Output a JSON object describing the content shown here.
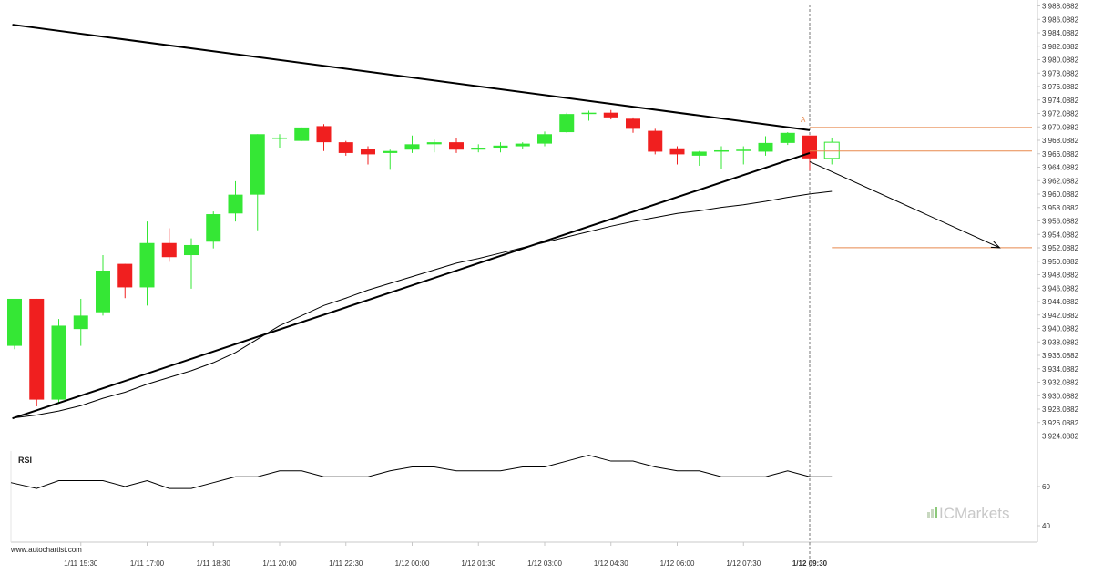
{
  "chart_data": {
    "type": "candlestick",
    "source_label": "www.autochartist.com",
    "brand_label": "ICMarkets",
    "y_axis": {
      "min": 3924.0882,
      "max": 3988.0882,
      "ticks": [
        3988.0882,
        3986.0882,
        3984.0882,
        3982.0882,
        3980.0882,
        3978.0882,
        3976.0882,
        3974.0882,
        3972.0882,
        3970.0882,
        3968.0882,
        3966.0882,
        3964.0882,
        3962.0882,
        3960.0882,
        3958.0882,
        3956.0882,
        3954.0882,
        3952.0882,
        3950.0882,
        3948.0882,
        3946.0882,
        3944.0882,
        3942.0882,
        3940.0882,
        3938.0882,
        3936.0882,
        3934.0882,
        3932.0882,
        3930.0882,
        3928.0882,
        3926.0882,
        3924.0882
      ],
      "tick_labels": [
        "3,988.0882",
        "3,986.0882",
        "3,984.0882",
        "3,982.0882",
        "3,980.0882",
        "3,978.0882",
        "3,976.0882",
        "3,974.0882",
        "3,972.0882",
        "3,970.0882",
        "3,968.0882",
        "3,966.0882",
        "3,964.0882",
        "3,962.0882",
        "3,960.0882",
        "3,958.0882",
        "3,956.0882",
        "3,954.0882",
        "3,952.0882",
        "3,950.0882",
        "3,948.0882",
        "3,946.0882",
        "3,944.0882",
        "3,942.0882",
        "3,940.0882",
        "3,938.0882",
        "3,936.0882",
        "3,934.0882",
        "3,932.0882",
        "3,930.0882",
        "3,928.0882",
        "3,926.0882",
        "3,924.0882"
      ]
    },
    "x_axis": {
      "labels": [
        {
          "index": 3,
          "text": "1/11 15:30"
        },
        {
          "index": 6,
          "text": "1/11 17:00"
        },
        {
          "index": 9,
          "text": "1/11 18:30"
        },
        {
          "index": 12,
          "text": "1/11 20:00"
        },
        {
          "index": 15,
          "text": "1/11 22:30"
        },
        {
          "index": 18,
          "text": "1/12 00:00"
        },
        {
          "index": 21,
          "text": "1/12 01:30"
        },
        {
          "index": 24,
          "text": "1/12 03:00"
        },
        {
          "index": 27,
          "text": "1/12 04:30"
        },
        {
          "index": 30,
          "text": "1/12 06:00"
        },
        {
          "index": 33,
          "text": "1/12 07:30"
        },
        {
          "index": 36,
          "text": "1/12 09:30",
          "bold": true
        }
      ]
    },
    "candles": [
      {
        "o": 3937.5,
        "h": 3944.5,
        "l": 3937.0,
        "c": 3944.5
      },
      {
        "o": 3944.5,
        "h": 3944.5,
        "l": 3928.5,
        "c": 3929.5
      },
      {
        "o": 3929.5,
        "h": 3941.5,
        "l": 3929.0,
        "c": 3940.5
      },
      {
        "o": 3940.0,
        "h": 3944.5,
        "l": 3937.5,
        "c": 3942.0
      },
      {
        "o": 3942.5,
        "h": 3951.0,
        "l": 3942.0,
        "c": 3948.7
      },
      {
        "o": 3949.7,
        "h": 3949.7,
        "l": 3944.6,
        "c": 3946.2
      },
      {
        "o": 3946.2,
        "h": 3956.0,
        "l": 3943.5,
        "c": 3952.8
      },
      {
        "o": 3952.8,
        "h": 3955.0,
        "l": 3950.0,
        "c": 3950.7
      },
      {
        "o": 3951.0,
        "h": 3953.5,
        "l": 3946.0,
        "c": 3952.5
      },
      {
        "o": 3953.0,
        "h": 3957.5,
        "l": 3952.0,
        "c": 3957.1
      },
      {
        "o": 3957.2,
        "h": 3962.0,
        "l": 3956.0,
        "c": 3960.0
      },
      {
        "o": 3960.0,
        "h": 3969.0,
        "l": 3954.7,
        "c": 3969.0
      },
      {
        "o": 3968.5,
        "h": 3969.0,
        "l": 3967.0,
        "c": 3968.5
      },
      {
        "o": 3968.0,
        "h": 3970.0,
        "l": 3968.0,
        "c": 3970.0
      },
      {
        "o": 3970.2,
        "h": 3970.5,
        "l": 3966.5,
        "c": 3967.8
      },
      {
        "o": 3967.8,
        "h": 3968.0,
        "l": 3965.8,
        "c": 3966.2
      },
      {
        "o": 3966.8,
        "h": 3967.2,
        "l": 3964.5,
        "c": 3966.0
      },
      {
        "o": 3966.2,
        "h": 3966.7,
        "l": 3963.7,
        "c": 3966.5
      },
      {
        "o": 3966.7,
        "h": 3968.8,
        "l": 3966.2,
        "c": 3967.5
      },
      {
        "o": 3967.5,
        "h": 3968.2,
        "l": 3966.3,
        "c": 3967.8
      },
      {
        "o": 3967.8,
        "h": 3968.4,
        "l": 3966.2,
        "c": 3966.7
      },
      {
        "o": 3966.7,
        "h": 3967.5,
        "l": 3966.3,
        "c": 3967.0
      },
      {
        "o": 3967.0,
        "h": 3967.8,
        "l": 3966.3,
        "c": 3967.3
      },
      {
        "o": 3967.2,
        "h": 3967.8,
        "l": 3966.8,
        "c": 3967.6
      },
      {
        "o": 3967.6,
        "h": 3969.4,
        "l": 3967.2,
        "c": 3969.0
      },
      {
        "o": 3969.3,
        "h": 3972.2,
        "l": 3969.2,
        "c": 3972.0
      },
      {
        "o": 3972.0,
        "h": 3972.5,
        "l": 3971.0,
        "c": 3972.2
      },
      {
        "o": 3972.2,
        "h": 3972.6,
        "l": 3971.2,
        "c": 3971.5
      },
      {
        "o": 3971.3,
        "h": 3971.5,
        "l": 3969.2,
        "c": 3969.8
      },
      {
        "o": 3969.5,
        "h": 3969.8,
        "l": 3966.0,
        "c": 3966.4
      },
      {
        "o": 3966.9,
        "h": 3967.2,
        "l": 3964.5,
        "c": 3966.0
      },
      {
        "o": 3965.8,
        "h": 3966.5,
        "l": 3964.3,
        "c": 3966.4
      },
      {
        "o": 3966.6,
        "h": 3967.2,
        "l": 3963.8,
        "c": 3966.6
      },
      {
        "o": 3966.5,
        "h": 3967.2,
        "l": 3964.5,
        "c": 3966.7
      },
      {
        "o": 3966.4,
        "h": 3968.7,
        "l": 3965.8,
        "c": 3967.7
      },
      {
        "o": 3967.7,
        "h": 3969.3,
        "l": 3967.4,
        "c": 3969.2
      },
      {
        "o": 3968.8,
        "h": 3968.8,
        "l": 3963.6,
        "c": 3965.4
      },
      {
        "o": 3965.4,
        "h": 3968.5,
        "l": 3964.5,
        "c": 3967.8,
        "hollow": true
      }
    ],
    "moving_average": [
      {
        "i": 0,
        "v": 3926.8
      },
      {
        "i": 1,
        "v": 3927.2
      },
      {
        "i": 2,
        "v": 3927.8
      },
      {
        "i": 3,
        "v": 3928.6
      },
      {
        "i": 4,
        "v": 3929.7
      },
      {
        "i": 5,
        "v": 3930.6
      },
      {
        "i": 6,
        "v": 3931.8
      },
      {
        "i": 7,
        "v": 3932.8
      },
      {
        "i": 8,
        "v": 3933.8
      },
      {
        "i": 9,
        "v": 3935.0
      },
      {
        "i": 10,
        "v": 3936.5
      },
      {
        "i": 11,
        "v": 3938.5
      },
      {
        "i": 12,
        "v": 3940.5
      },
      {
        "i": 13,
        "v": 3942.0
      },
      {
        "i": 14,
        "v": 3943.5
      },
      {
        "i": 15,
        "v": 3944.6
      },
      {
        "i": 16,
        "v": 3945.8
      },
      {
        "i": 17,
        "v": 3946.8
      },
      {
        "i": 18,
        "v": 3947.8
      },
      {
        "i": 19,
        "v": 3948.8
      },
      {
        "i": 20,
        "v": 3949.8
      },
      {
        "i": 21,
        "v": 3950.5
      },
      {
        "i": 22,
        "v": 3951.3
      },
      {
        "i": 23,
        "v": 3952.1
      },
      {
        "i": 24,
        "v": 3952.9
      },
      {
        "i": 25,
        "v": 3953.7
      },
      {
        "i": 26,
        "v": 3954.5
      },
      {
        "i": 27,
        "v": 3955.3
      },
      {
        "i": 28,
        "v": 3956.0
      },
      {
        "i": 29,
        "v": 3956.6
      },
      {
        "i": 30,
        "v": 3957.2
      },
      {
        "i": 31,
        "v": 3957.6
      },
      {
        "i": 32,
        "v": 3958.1
      },
      {
        "i": 33,
        "v": 3958.5
      },
      {
        "i": 34,
        "v": 3959.0
      },
      {
        "i": 35,
        "v": 3959.6
      },
      {
        "i": 36,
        "v": 3960.1
      },
      {
        "i": 37,
        "v": 3960.5
      }
    ],
    "resistance_line": {
      "from": {
        "i": -0.1,
        "v": 3985.3
      },
      "to": {
        "i": 36.0,
        "v": 3969.6
      }
    },
    "support_line": {
      "from": {
        "i": -0.1,
        "v": 3926.7
      },
      "to": {
        "i": 36.0,
        "v": 3966.2
      }
    },
    "breakout_point": {
      "i": 36.0,
      "v": 3964.9
    },
    "target_arrow_end": {
      "i": 44.6,
      "v": 3952.1
    },
    "horizontal_levels": [
      {
        "v": 3970.0,
        "from_i": 36.0
      },
      {
        "v": 3966.5,
        "from_i": 36.0
      },
      {
        "v": 3952.1,
        "from_i": 37.0
      }
    ],
    "marker": {
      "text": "A",
      "i": 35.7,
      "v": 3970.4
    },
    "current_time_index": 36,
    "rsi": {
      "label": "RSI",
      "ticks": [
        60,
        40
      ],
      "values": [
        62,
        59,
        63,
        63,
        63,
        60,
        63,
        59,
        59,
        62,
        65,
        65,
        68,
        68,
        65,
        65,
        65,
        68,
        70,
        70,
        68,
        68,
        68,
        70,
        70,
        73,
        76,
        73,
        73,
        70,
        68,
        68,
        65,
        65,
        65,
        68,
        65,
        65
      ]
    },
    "colors": {
      "up": "#35e735",
      "down": "#f01f1f",
      "trendline": "#000000",
      "moving_average": "#000000",
      "levels": "#e8894d",
      "arrow": "#000000",
      "axis": "#c8c8c8",
      "brand": "#c8c8c8",
      "brand_accent": "#8cc97a"
    }
  }
}
